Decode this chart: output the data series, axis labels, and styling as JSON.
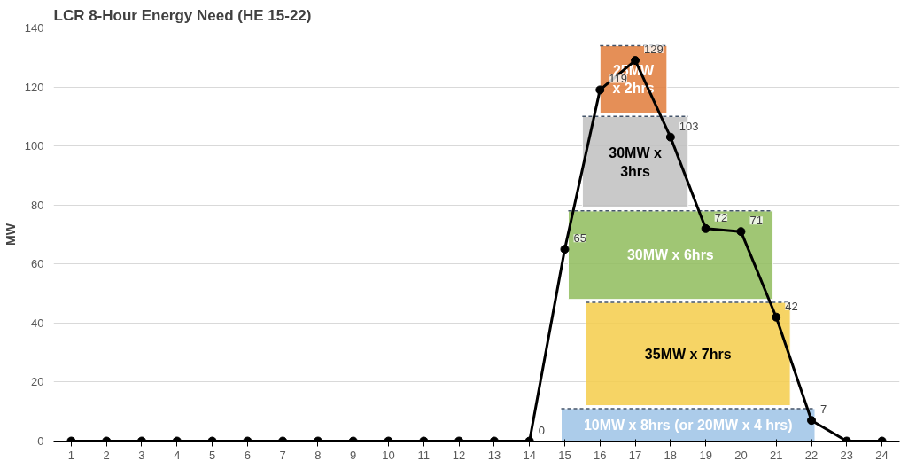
{
  "chart_data": {
    "type": "line",
    "title": "LCR 8-Hour Energy Need    (HE 15-22)",
    "ylabel": "MW",
    "xlim": [
      0.5,
      24.5
    ],
    "xticks": [
      1,
      2,
      3,
      4,
      5,
      6,
      7,
      8,
      9,
      10,
      11,
      12,
      13,
      14,
      15,
      16,
      17,
      18,
      19,
      20,
      21,
      22,
      23,
      24
    ],
    "ylim": [
      0,
      140
    ],
    "yticks": [
      0,
      20,
      40,
      60,
      80,
      100,
      120,
      140
    ],
    "grid": "y",
    "series": [
      {
        "type": "bar",
        "color": "#e07b39",
        "x": [
          16.95
        ],
        "xerrors": [
          [
            16,
            17.9
          ]
        ],
        "base": [
          111
        ],
        "values": [
          23
        ]
      },
      {
        "type": "bar",
        "color": "#bfbfbf",
        "x": [
          17
        ],
        "xerrors": [
          [
            15.5,
            18.5
          ]
        ],
        "base": [
          79
        ],
        "values": [
          31
        ]
      },
      {
        "type": "bar",
        "color": "#8fbc5c",
        "x": [
          18
        ],
        "xerrors": [
          [
            15.1,
            20.9
          ]
        ],
        "base": [
          48
        ],
        "values": [
          30
        ]
      },
      {
        "type": "bar",
        "color": "#9dc3e6",
        "x": [
          18.5
        ],
        "xerrors": [
          [
            14.9,
            22.1
          ]
        ],
        "base": [
          0
        ],
        "values": [
          11
        ]
      },
      {
        "type": "bar",
        "color": "#f5cd4a",
        "x": [
          18.5
        ],
        "xerrors": [
          [
            15.6,
            21.4
          ]
        ],
        "base": [
          12
        ],
        "values": [
          35
        ]
      },
      {
        "color": "#000000",
        "marker": "circle",
        "x": [
          1,
          2,
          3,
          4,
          5,
          6,
          7,
          8,
          9,
          10,
          11,
          12,
          13,
          14,
          15,
          16,
          17,
          18,
          19,
          20,
          21,
          22,
          23,
          24
        ],
        "values": [
          0,
          0,
          0,
          0,
          0,
          0,
          0,
          0,
          0,
          0,
          0,
          0,
          0,
          0,
          65,
          119,
          129,
          103,
          72,
          71,
          42,
          7,
          0,
          0
        ],
        "value_labels": [
          null,
          null,
          null,
          null,
          null,
          null,
          null,
          null,
          null,
          null,
          null,
          null,
          null,
          "0",
          "65",
          "119",
          "129",
          "103",
          "72",
          "71",
          "42",
          "7",
          null,
          null
        ]
      }
    ],
    "annotations": [
      "25MW\nx 2hrs",
      "30MW x\n3hrs",
      "30MW x 6hrs",
      "10MW x 8hrs (or 20MW x 4 hrs)",
      "35MW x 7hrs"
    ]
  }
}
